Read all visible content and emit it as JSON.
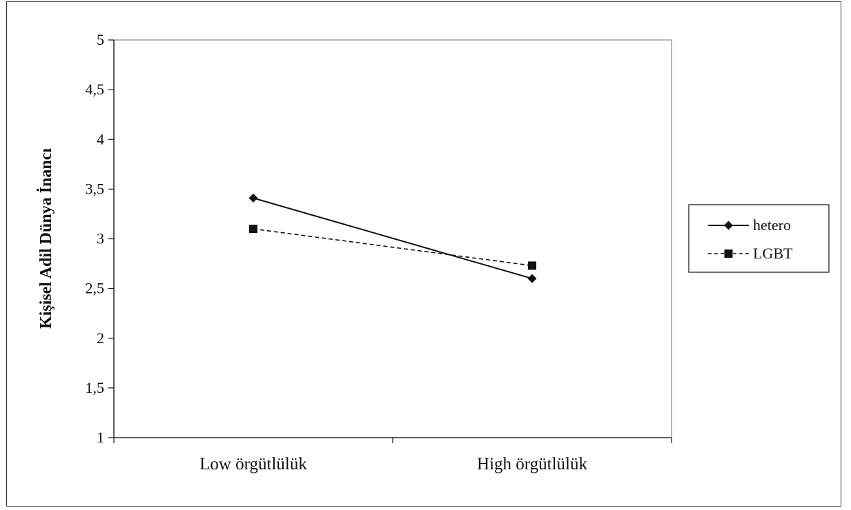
{
  "chart_data": {
    "type": "line",
    "categories": [
      "Low örgütlülük",
      "High örgütlülük"
    ],
    "ylabel": "Kişisel Adil Dünya İnancı",
    "xlabel": "",
    "ylim": [
      1,
      5
    ],
    "yticks": [
      1,
      1.5,
      2,
      2.5,
      3,
      3.5,
      4,
      4.5,
      5
    ],
    "ytick_labels": [
      "1",
      "1,5",
      "2",
      "2,5",
      "3",
      "3,5",
      "4",
      "4,5",
      "5"
    ],
    "grid": false,
    "legend_position": "right",
    "series": [
      {
        "name": "hetero",
        "values": [
          3.41,
          2.6
        ],
        "line_style": "solid",
        "marker": "diamond",
        "color": "#111111"
      },
      {
        "name": "LGBT",
        "values": [
          3.1,
          2.73
        ],
        "line_style": "dashed",
        "marker": "square",
        "color": "#111111"
      }
    ]
  }
}
